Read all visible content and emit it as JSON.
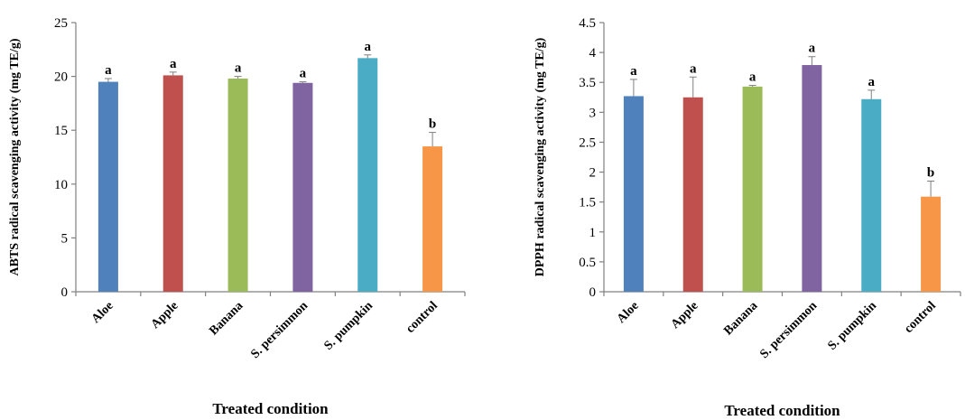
{
  "chart_data": [
    {
      "type": "bar",
      "categories": [
        "Aloe",
        "Apple",
        "Banana",
        "S. persimmon",
        "S. pumpkin",
        "control"
      ],
      "values": [
        19.5,
        20.1,
        19.8,
        19.4,
        21.7,
        13.5
      ],
      "errors": [
        0.3,
        0.3,
        0.2,
        0.1,
        0.3,
        1.3
      ],
      "significance": [
        "a",
        "a",
        "a",
        "a",
        "a",
        "b"
      ],
      "colors": [
        "#4f81bd",
        "#c0504d",
        "#9bbb59",
        "#8064a2",
        "#4bacc6",
        "#f79646"
      ],
      "ylim": [
        0,
        25
      ],
      "yticks": [
        "0",
        "5",
        "10",
        "15",
        "20",
        "25"
      ],
      "ytick_values": [
        0,
        5,
        10,
        15,
        20,
        25
      ],
      "ylabel": "ABTS radical scavenging activity (mg TE/g)",
      "xlabel": "Treated condition",
      "grid": false
    },
    {
      "type": "bar",
      "categories": [
        "Aloe",
        "Apple",
        "Banana",
        "S. persimmon",
        "S. pumpkin",
        "control"
      ],
      "values": [
        3.27,
        3.25,
        3.43,
        3.79,
        3.22,
        1.59
      ],
      "errors": [
        0.28,
        0.34,
        0.02,
        0.14,
        0.15,
        0.26
      ],
      "significance": [
        "a",
        "a",
        "a",
        "a",
        "a",
        "b"
      ],
      "colors": [
        "#4f81bd",
        "#c0504d",
        "#9bbb59",
        "#8064a2",
        "#4bacc6",
        "#f79646"
      ],
      "ylim": [
        0,
        4.5
      ],
      "yticks": [
        "0",
        "0.5",
        "1",
        "1.5",
        "2",
        "2.5",
        "3",
        "3.5",
        "4",
        "4.5"
      ],
      "ytick_values": [
        0,
        0.5,
        1,
        1.5,
        2,
        2.5,
        3,
        3.5,
        4,
        4.5
      ],
      "ylabel": "DPPH radical scavenging activity (mg TE/g)",
      "xlabel": "Treated condition",
      "grid": false
    }
  ]
}
